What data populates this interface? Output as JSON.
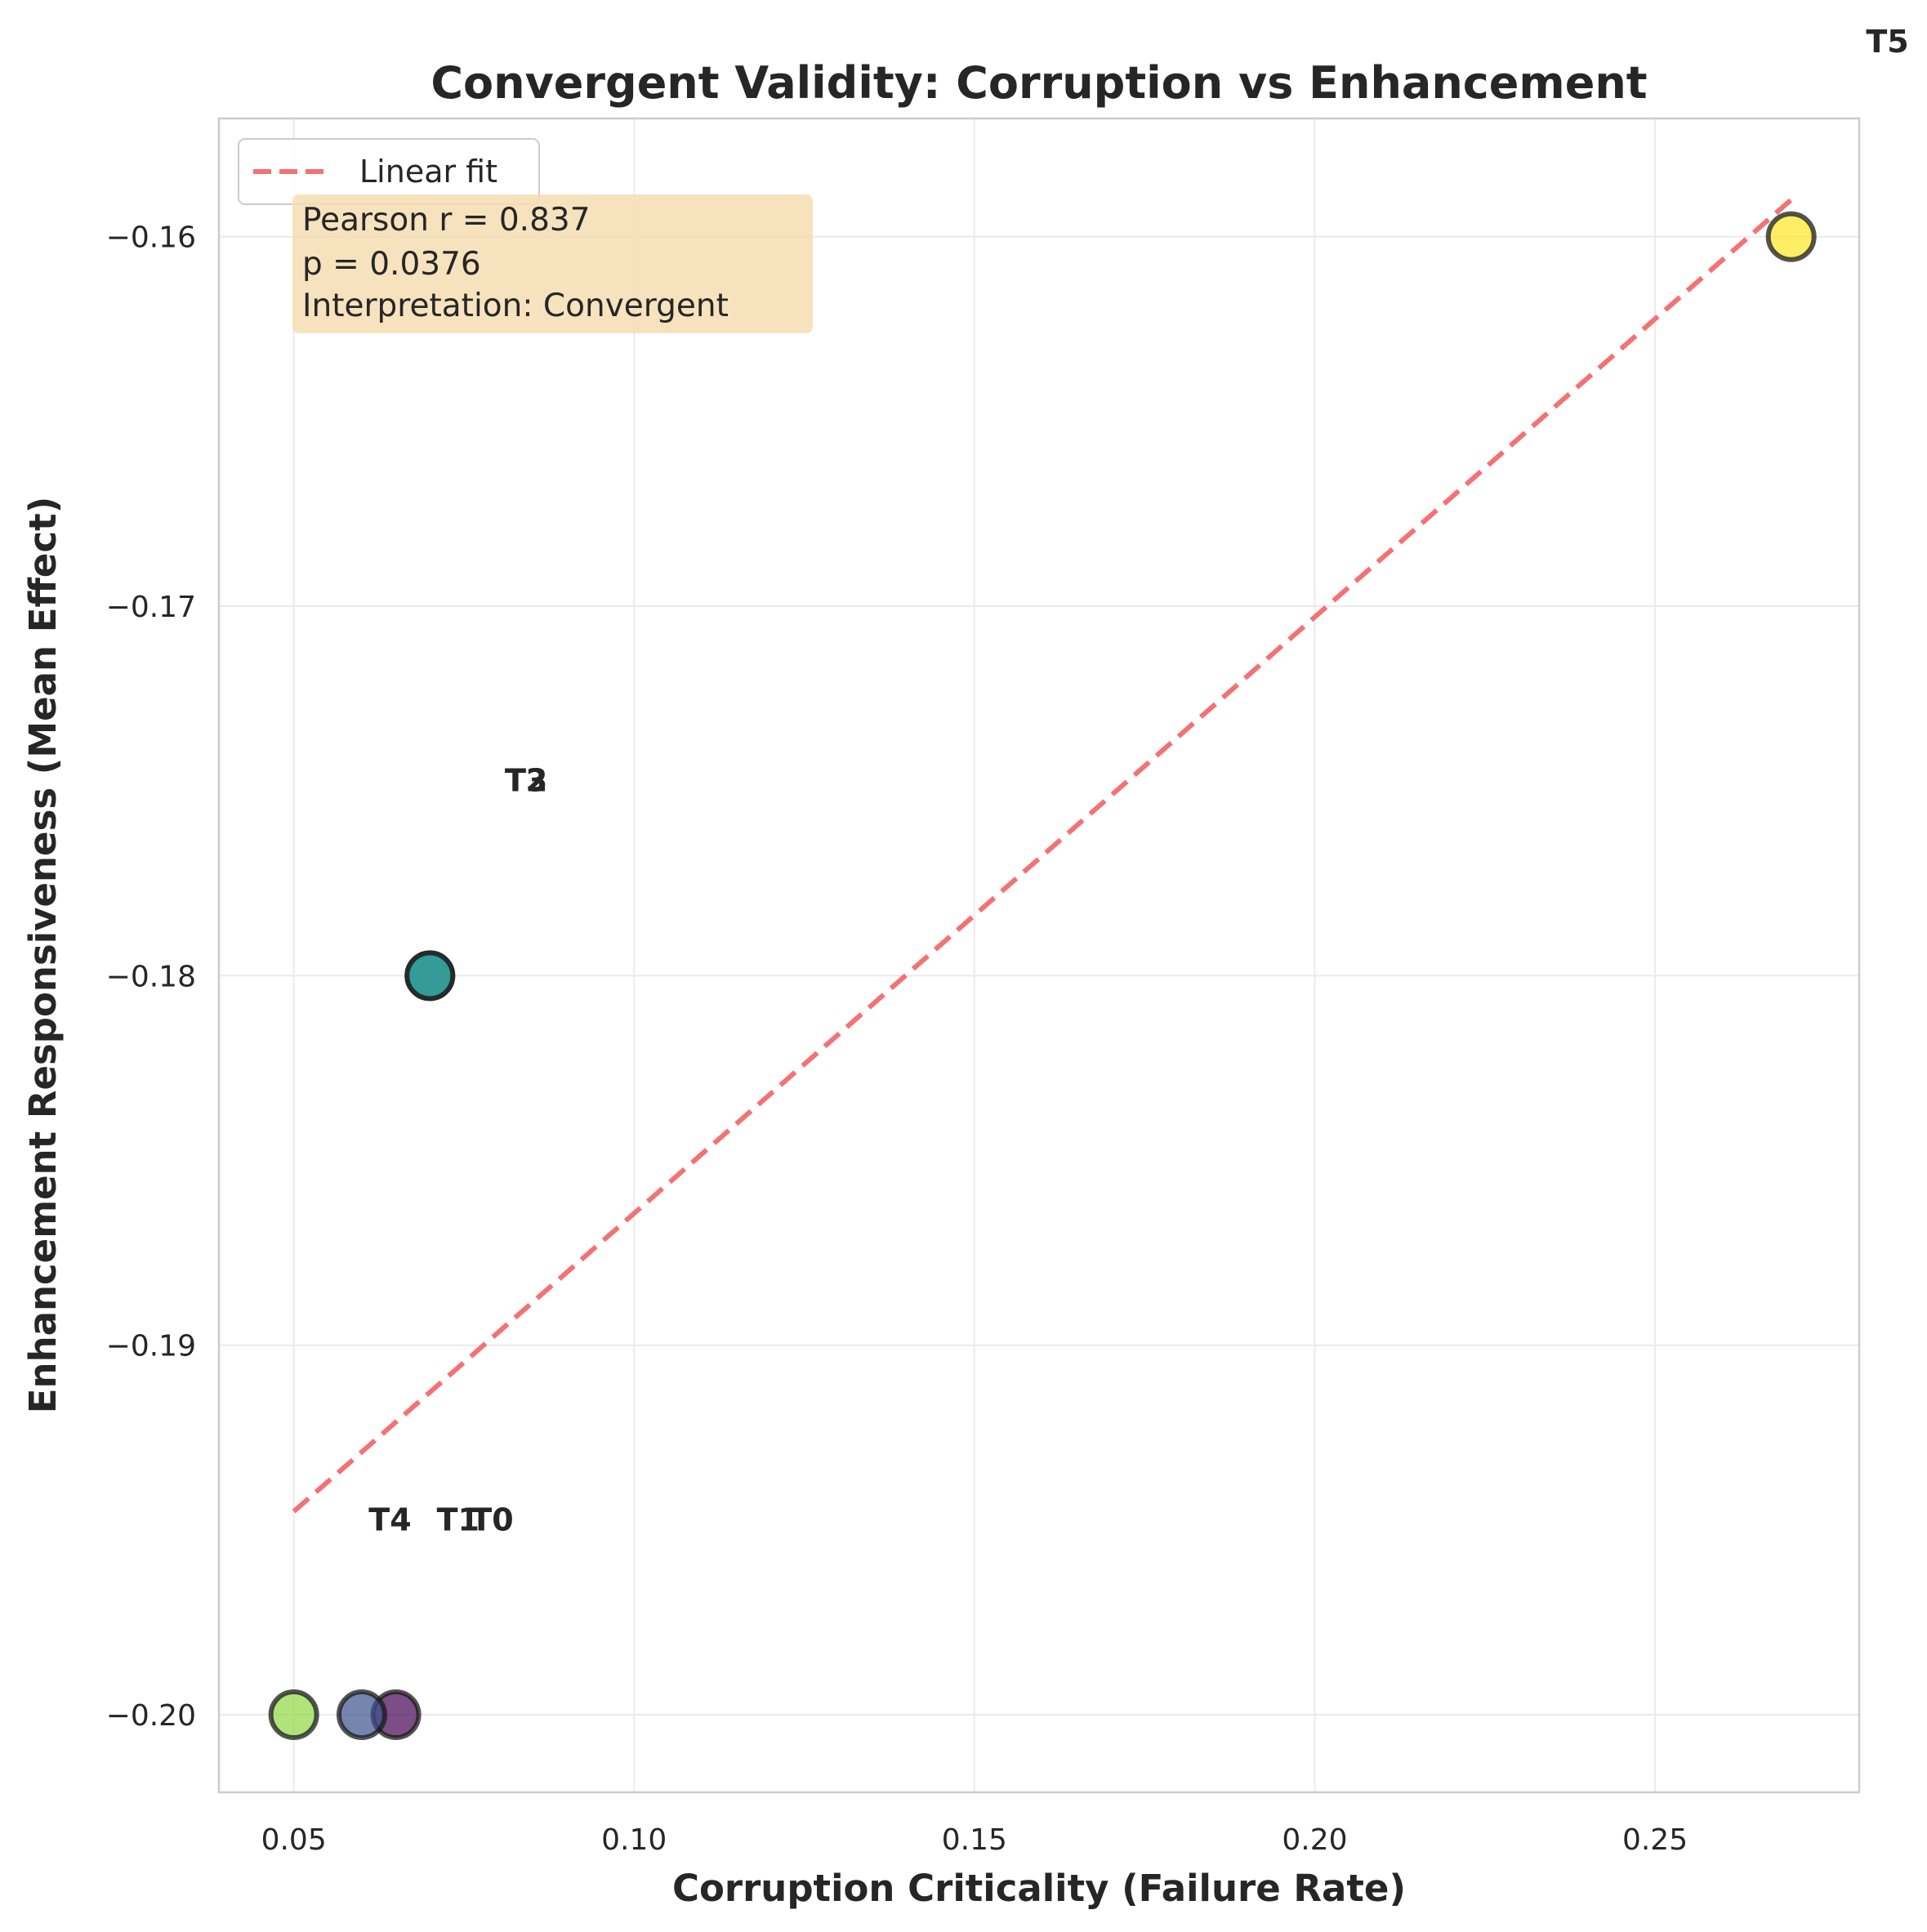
{
  "chart_data": {
    "type": "scatter",
    "title": "Convergent Validity: Corruption vs Enhancement",
    "xlabel": "Corruption Criticality (Failure Rate)",
    "ylabel": "Enhancement Responsiveness (Mean Effect)",
    "xlim": [
      0.039,
      0.28
    ],
    "ylim": [
      -0.2021,
      -0.1568
    ],
    "x_ticks": [
      0.05,
      0.1,
      0.15,
      0.2,
      0.25
    ],
    "x_tick_labels": [
      "0.05",
      "0.10",
      "0.15",
      "0.20",
      "0.25"
    ],
    "y_ticks": [
      -0.2,
      -0.19,
      -0.18,
      -0.17,
      -0.16
    ],
    "y_tick_labels": [
      "−0.20",
      "−0.19",
      "−0.18",
      "−0.17",
      "−0.16"
    ],
    "grid": true,
    "points": [
      {
        "label": "T0",
        "x": 0.065,
        "y": -0.2,
        "color": "#440154",
        "label_x": 0.076,
        "label_y": -0.1947
      },
      {
        "label": "T1",
        "x": 0.06,
        "y": -0.2,
        "color": "#3b528b",
        "label_x": 0.071,
        "label_y": -0.1947
      },
      {
        "label": "T2",
        "x": 0.07,
        "y": -0.18,
        "color": "#21918c",
        "label_x": 0.081,
        "label_y": -0.1747
      },
      {
        "label": "T3",
        "x": 0.07,
        "y": -0.18,
        "color": "#21918c",
        "label_x": 0.081,
        "label_y": -0.1747
      },
      {
        "label": "T4",
        "x": 0.05,
        "y": -0.2,
        "color": "#90d743",
        "label_x": 0.061,
        "label_y": -0.1947
      },
      {
        "label": "T5",
        "x": 0.27,
        "y": -0.16,
        "color": "#fde725",
        "label_x": 0.281,
        "label_y": -0.1547
      }
    ],
    "fit_line": {
      "name": "Linear fit",
      "x": [
        0.05,
        0.27
      ],
      "y": [
        -0.1945,
        -0.159
      ],
      "color": "#f47174",
      "style": "dashed"
    },
    "legend": {
      "position": "top-left",
      "entries": [
        "Linear fit"
      ]
    },
    "stats_box": {
      "lines": [
        "Pearson r = 0.837",
        "p = 0.0376",
        "Interpretation: Convergent"
      ],
      "background": "#f5deb3"
    }
  }
}
